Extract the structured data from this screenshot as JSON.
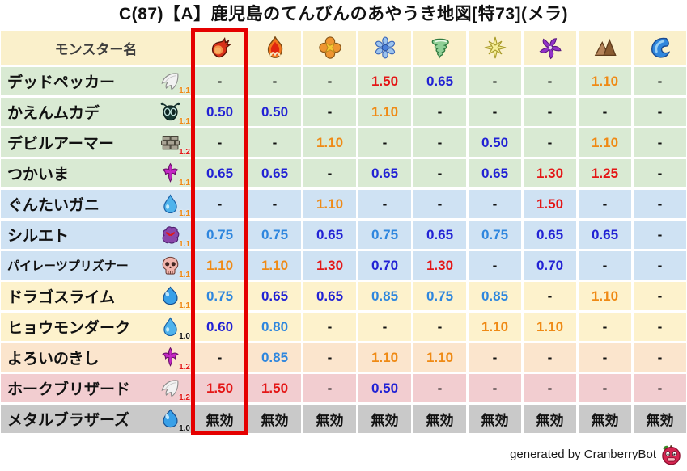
{
  "title": "C(87)【A】鹿児島のてんびんのあやうき地図[特73](メラ)",
  "header": {
    "name_column_label": "モンスター名",
    "element_icons": [
      "fireball-icon",
      "flame-icon",
      "burst-icon",
      "snowflake-icon",
      "tornado-icon",
      "starburst-icon",
      "pinwheel-icon",
      "mountain-icon",
      "wave-icon"
    ]
  },
  "chart_data": {
    "type": "table",
    "title": "C(87)【A】鹿児島のてんびんのあやうき地図[特73](メラ)",
    "columns": [
      "モンスター名",
      "fireball-icon",
      "flame-icon",
      "burst-icon",
      "snowflake-icon",
      "tornado-icon",
      "starburst-icon",
      "pinwheel-icon",
      "mountain-icon",
      "wave-icon"
    ],
    "highlighted_column": "fireball-icon",
    "rows": [
      {
        "name": "デッドペッカー",
        "icon": "wing-icon",
        "level": "1.1",
        "row_color": "green",
        "values": [
          "-",
          "-",
          "-",
          "1.50",
          "0.65",
          "-",
          "-",
          "1.10",
          "-"
        ]
      },
      {
        "name": "かえんムカデ",
        "icon": "bug-icon",
        "level": "1.1",
        "row_color": "green",
        "values": [
          "0.50",
          "0.50",
          "-",
          "1.10",
          "-",
          "-",
          "-",
          "-",
          "-"
        ]
      },
      {
        "name": "デビルアーマー",
        "icon": "brick-icon",
        "level": "1.2",
        "row_color": "green",
        "values": [
          "-",
          "-",
          "1.10",
          "-",
          "-",
          "0.50",
          "-",
          "1.10",
          "-"
        ]
      },
      {
        "name": "つかいま",
        "icon": "trident-icon",
        "level": "1.1",
        "row_color": "green",
        "values": [
          "0.65",
          "0.65",
          "-",
          "0.65",
          "-",
          "0.65",
          "1.30",
          "1.25",
          "-"
        ]
      },
      {
        "name": "ぐんたいガニ",
        "icon": "waterdrop-icon",
        "level": "1.1",
        "row_color": "blue",
        "values": [
          "-",
          "-",
          "1.10",
          "-",
          "-",
          "-",
          "1.50",
          "-",
          "-"
        ]
      },
      {
        "name": "シルエト",
        "icon": "ghost-icon",
        "level": "1.1",
        "row_color": "blue",
        "values": [
          "0.75",
          "0.75",
          "0.65",
          "0.75",
          "0.65",
          "0.75",
          "0.65",
          "0.65",
          "-"
        ]
      },
      {
        "name": "パイレーツプリズナー",
        "icon": "skull-icon",
        "level": "1.1",
        "row_color": "blue",
        "values": [
          "1.10",
          "1.10",
          "1.30",
          "0.70",
          "1.30",
          "-",
          "0.70",
          "-",
          "-"
        ]
      },
      {
        "name": "ドラゴスライム",
        "icon": "slime-icon",
        "level": "1.1",
        "row_color": "cream",
        "values": [
          "0.75",
          "0.65",
          "0.65",
          "0.85",
          "0.75",
          "0.85",
          "-",
          "1.10",
          "-"
        ]
      },
      {
        "name": "ヒョウモンダーク",
        "icon": "waterdrop-icon",
        "level": "1.0",
        "row_color": "cream",
        "values": [
          "0.60",
          "0.80",
          "-",
          "-",
          "-",
          "1.10",
          "1.10",
          "-",
          "-"
        ]
      },
      {
        "name": "よろいのきし",
        "icon": "trident-icon",
        "level": "1.2",
        "row_color": "peach",
        "values": [
          "-",
          "0.85",
          "-",
          "1.10",
          "1.10",
          "-",
          "-",
          "-",
          "-"
        ]
      },
      {
        "name": "ホークブリザード",
        "icon": "wing-icon",
        "level": "1.2",
        "row_color": "pink",
        "values": [
          "1.50",
          "1.50",
          "-",
          "0.50",
          "-",
          "-",
          "-",
          "-",
          "-"
        ]
      },
      {
        "name": "メタルブラザーズ",
        "icon": "slime-icon",
        "level": "1.0",
        "row_color": "gray",
        "values": [
          "無効",
          "無効",
          "無効",
          "無効",
          "無効",
          "無効",
          "無効",
          "無効",
          "無効"
        ]
      }
    ]
  },
  "footer": {
    "credit": "generated by CranberryBot",
    "bot_icon": "cranberry-icon"
  },
  "palette": {
    "header_bg": "#faf0cb",
    "highlight_border": "#e50000",
    "row_colors": {
      "green": "#d9ead3",
      "blue": "#cfe2f3",
      "cream": "#fdf2cc",
      "peach": "#fbe5cd",
      "pink": "#f2cdd0",
      "gray": "#c9c9c9"
    },
    "value_low": "#2222d4",
    "value_mid": "#2e86de",
    "value_up": "#ef8a15",
    "value_high": "#e41717",
    "value_neutral": "#111111",
    "level_colors": {
      "1.0": "#111111",
      "1.1": "#ef8a15",
      "1.2": "#e41717"
    }
  }
}
